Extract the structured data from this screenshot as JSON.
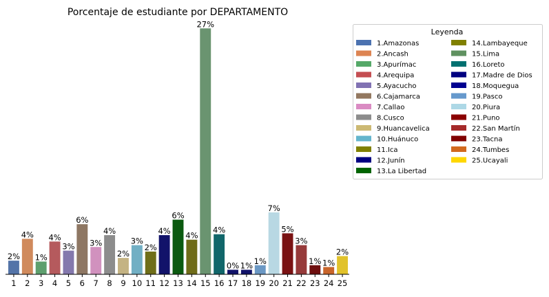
{
  "chart_data": {
    "type": "bar",
    "title": "Porcentaje de estudiante por DEPARTAMENTO",
    "xlabel": "",
    "ylabel": "",
    "categories": [
      "1",
      "2",
      "3",
      "4",
      "5",
      "6",
      "7",
      "8",
      "9",
      "10",
      "11",
      "12",
      "13",
      "14",
      "15",
      "16",
      "17",
      "18",
      "19",
      "20",
      "21",
      "22",
      "23",
      "24",
      "25"
    ],
    "values": [
      1.5,
      3.9,
      1.4,
      3.6,
      2.6,
      5.5,
      3.0,
      4.3,
      1.8,
      3.2,
      2.5,
      4.3,
      6.0,
      3.8,
      27.0,
      4.4,
      0.5,
      0.5,
      1.0,
      6.8,
      4.5,
      3.2,
      1.0,
      0.8,
      2.0
    ],
    "data_labels": [
      "2%",
      "4%",
      "1%",
      "4%",
      "3%",
      "6%",
      "3%",
      "4%",
      "2%",
      "3%",
      "2%",
      "4%",
      "6%",
      "4%",
      "27%",
      "4%",
      "0%",
      "1%",
      "1%",
      "7%",
      "5%",
      "3%",
      "1%",
      "1%",
      "2%"
    ],
    "colors": [
      "#5474a8",
      "#d08a5c",
      "#5e9f6e",
      "#b55a5d",
      "#8478ad",
      "#8e7763",
      "#d191be",
      "#8c8c8c",
      "#c4b383",
      "#71afc4",
      "#6f6e18",
      "#12136a",
      "#0b5a10",
      "#6f6c18",
      "#6a9470",
      "#11666a",
      "#12136a",
      "#12136a",
      "#6b98c4",
      "#b8d8e3",
      "#7a1213",
      "#963a3a",
      "#6e0f0f",
      "#c8652b",
      "#e1c22b"
    ],
    "ylim": [
      0,
      27.7
    ],
    "grid": false,
    "legend": {
      "title": "Leyenda",
      "placement": "outside-right",
      "entries": [
        {
          "label": "1.Amazonas",
          "color": "#4c72b0"
        },
        {
          "label": "2.Ancash",
          "color": "#dd8452"
        },
        {
          "label": "3.Apurímac",
          "color": "#55a868"
        },
        {
          "label": "4.Arequipa",
          "color": "#c44e52"
        },
        {
          "label": "5.Ayacucho",
          "color": "#8172b3"
        },
        {
          "label": "6.Cajamarca",
          "color": "#937860"
        },
        {
          "label": "7.Callao",
          "color": "#da8bc3"
        },
        {
          "label": "8.Cusco",
          "color": "#8c8c8c"
        },
        {
          "label": "9.Huancavelica",
          "color": "#ccb974"
        },
        {
          "label": "10.Huánuco",
          "color": "#64b5cd"
        },
        {
          "label": "11.Ica",
          "color": "#808000"
        },
        {
          "label": "12.Junín",
          "color": "#000080"
        },
        {
          "label": "13.La Libertad",
          "color": "#006400"
        },
        {
          "label": "14.Lambayeque",
          "color": "#808000"
        },
        {
          "label": "15.Lima",
          "color": "#5f9160"
        },
        {
          "label": "16.Loreto",
          "color": "#007070"
        },
        {
          "label": "17.Madre de Dios",
          "color": "#000080"
        },
        {
          "label": "18.Moquegua",
          "color": "#000090"
        },
        {
          "label": "19.Pasco",
          "color": "#6699cc"
        },
        {
          "label": "20.Piura",
          "color": "#add8e6"
        },
        {
          "label": "21.Puno",
          "color": "#8b0000"
        },
        {
          "label": "22.San Martín",
          "color": "#a52a2a"
        },
        {
          "label": "23.Tacna",
          "color": "#800000"
        },
        {
          "label": "24.Tumbes",
          "color": "#d2691e"
        },
        {
          "label": "25.Ucayali",
          "color": "#ffd700"
        }
      ]
    }
  }
}
